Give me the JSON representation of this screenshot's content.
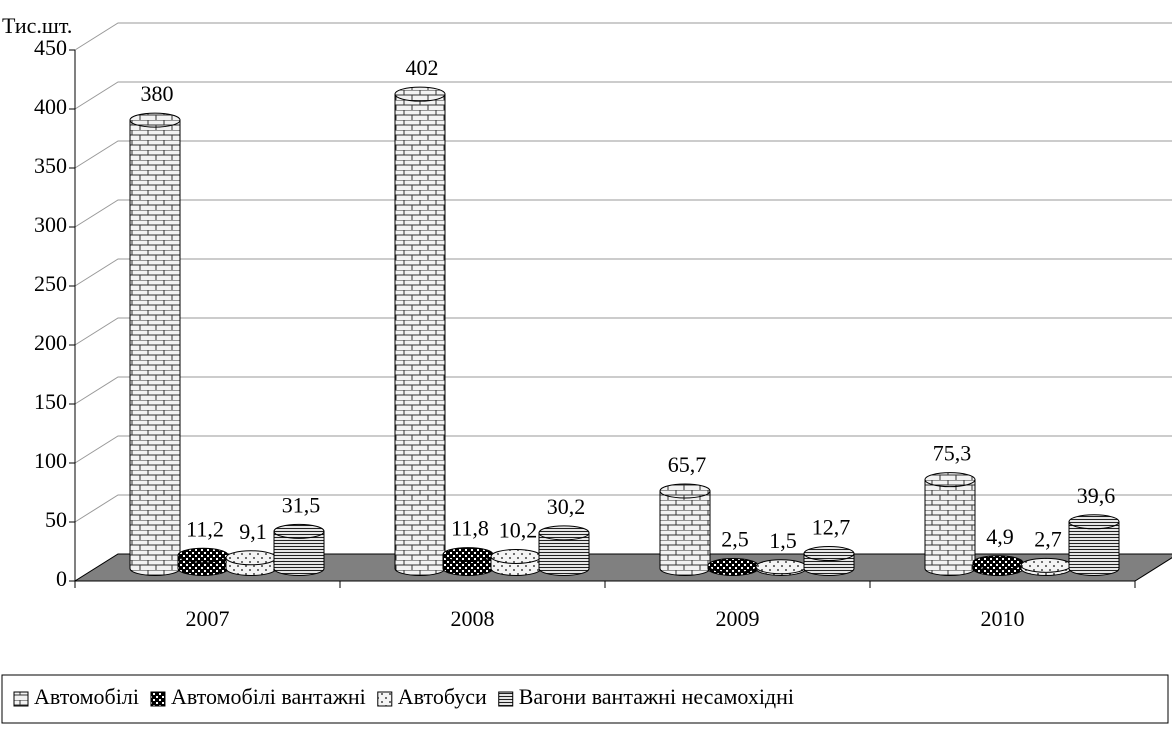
{
  "chart_data": {
    "type": "bar3d",
    "y_label": "Тис.шт.",
    "categories": [
      "2007",
      "2008",
      "2009",
      "2010"
    ],
    "series": [
      {
        "name": "Автомобілі",
        "color": "#d9d9d9",
        "pattern": "brick",
        "values": [
          380,
          402,
          65.7,
          75.3
        ],
        "value_labels": [
          "380",
          "402",
          "65,7",
          "75,3"
        ]
      },
      {
        "name": "Автомобілі вантажні",
        "color": "#111111",
        "pattern": "checker",
        "values": [
          11.2,
          11.8,
          2.5,
          4.9
        ],
        "value_labels": [
          "11,2",
          "11,8",
          "2,5",
          "4,9"
        ]
      },
      {
        "name": "Автобуси",
        "color": "#e8e8e8",
        "pattern": "dots",
        "values": [
          9.1,
          10.2,
          1.5,
          2.7
        ],
        "value_labels": [
          "9,1",
          "10,2",
          "1,5",
          "2,7"
        ]
      },
      {
        "name": "Вагони вантажні несамохідні",
        "color": "#bfbfbf",
        "pattern": "hlines",
        "values": [
          31.5,
          30.2,
          12.7,
          39.6
        ],
        "value_labels": [
          "31,5",
          "30,2",
          "12,7",
          "39,6"
        ]
      }
    ],
    "ylim": [
      0,
      450
    ],
    "yticks": [
      0,
      50,
      100,
      150,
      200,
      250,
      300,
      350,
      400,
      450
    ],
    "grid": true,
    "legend": "bottom"
  }
}
